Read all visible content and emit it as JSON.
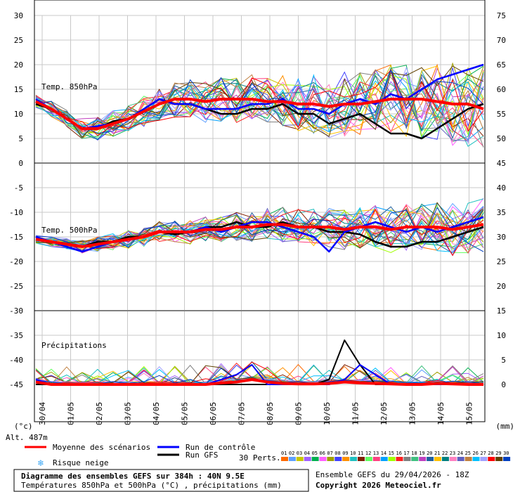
{
  "chart_data": {
    "type": "line",
    "panels": [
      {
        "label": "Temp. 850hPa",
        "unit": "°C"
      },
      {
        "label": "Temp. 500hPa",
        "unit": "°C"
      },
      {
        "label": "Précipitations",
        "unit": "mm"
      }
    ],
    "left_axis": {
      "ticks": [
        "30",
        "25",
        "20",
        "15",
        "10",
        "5",
        "0",
        "-5",
        "-10",
        "-15",
        "-20",
        "-25",
        "-30",
        "-35",
        "-40",
        "-45"
      ],
      "range": [
        -45,
        30
      ],
      "unit_label": "(°c)"
    },
    "right_axis": {
      "ticks": [
        "75",
        "70",
        "65",
        "60",
        "55",
        "50",
        "45",
        "40",
        "35",
        "30",
        "25",
        "20",
        "15",
        "10",
        "5",
        "0"
      ],
      "range": [
        0,
        75
      ],
      "unit_label": "(mm)"
    },
    "x_dates": [
      "30/04",
      "01/05",
      "02/05",
      "03/05",
      "04/05",
      "05/05",
      "06/05",
      "07/05",
      "08/05",
      "09/05",
      "10/05",
      "11/05",
      "12/05",
      "13/05",
      "14/05",
      "15/05"
    ],
    "altitude_label": "Alt. 487m",
    "series_850_mean": [
      12.5,
      11,
      9,
      7,
      7,
      8,
      9,
      10.5,
      12,
      13,
      13,
      12.5,
      13,
      13,
      13,
      12.5,
      12.5,
      12,
      12,
      11.5,
      12,
      12,
      12.5,
      13,
      13,
      13,
      12.5,
      12,
      12,
      11
    ],
    "series_850_control": [
      13,
      11,
      9,
      7,
      7.5,
      8,
      9,
      11,
      13,
      12,
      12,
      11,
      11,
      11,
      12,
      12,
      13,
      11,
      11,
      10,
      12,
      13,
      12,
      14,
      13,
      15,
      17,
      18,
      19,
      20
    ],
    "series_850_gfs": [
      12,
      11,
      9,
      7,
      7,
      8.5,
      9,
      11,
      13,
      12,
      12,
      11,
      10,
      10,
      11,
      11,
      12,
      10,
      10,
      8,
      9,
      10,
      8,
      6,
      6,
      5,
      7,
      9,
      11,
      12
    ],
    "series_500_mean": [
      -15.5,
      -16,
      -16.5,
      -17,
      -16.5,
      -16,
      -15.5,
      -15,
      -14,
      -14,
      -14,
      -13.5,
      -13.5,
      -13,
      -13,
      -12.5,
      -12.5,
      -13,
      -13,
      -13,
      -13.5,
      -13,
      -13,
      -13.5,
      -13,
      -13,
      -13,
      -13.5,
      -13,
      -12.5
    ],
    "series_500_control": [
      -15,
      -16,
      -17,
      -18,
      -17,
      -16,
      -15.5,
      -15,
      -14,
      -14,
      -14,
      -13,
      -14,
      -13,
      -12,
      -12,
      -13,
      -14,
      -15,
      -18,
      -14,
      -13,
      -12,
      -13,
      -14,
      -13,
      -14,
      -13,
      -12,
      -11
    ],
    "series_500_gfs": [
      -15.5,
      -16,
      -16.5,
      -17,
      -16,
      -16,
      -15,
      -15,
      -14,
      -14.5,
      -14,
      -13,
      -13,
      -12,
      -13,
      -13,
      -12,
      -13,
      -13,
      -14,
      -14,
      -14.5,
      -16,
      -17,
      -17,
      -16,
      -16,
      -15,
      -14,
      -13
    ],
    "series_precip_mean": [
      0.5,
      0,
      0,
      0,
      0,
      0,
      0,
      0,
      0,
      0,
      0,
      0,
      0.3,
      0.5,
      1,
      0.5,
      0.2,
      0.1,
      0.1,
      0.2,
      0.5,
      0.3,
      0.2,
      0.1,
      0,
      0,
      0.2,
      0.1,
      0,
      0
    ],
    "series_precip_control": [
      1,
      0,
      0,
      0,
      0,
      0,
      0,
      0,
      0,
      0,
      0,
      0,
      1,
      2,
      4,
      0,
      0,
      0,
      0,
      0,
      1,
      4,
      2,
      0,
      0,
      0,
      0,
      0,
      0,
      0
    ],
    "series_precip_gfs": [
      0,
      0,
      0,
      0,
      0,
      0,
      0,
      0,
      0,
      0,
      0,
      0,
      0,
      0,
      0,
      0,
      0,
      0,
      0,
      1,
      9,
      4,
      0,
      0,
      0,
      0,
      0,
      0,
      0,
      0
    ],
    "legend": {
      "mean": "Moyenne des scénarios",
      "control": "Run de contrôle",
      "gfs": "Run GFS",
      "snow": "Risque neige",
      "perts": "30 Perts.",
      "pert_colors": [
        "#ff6a00",
        "#5ea0ff",
        "#c8c800",
        "#a060ff",
        "#00b050",
        "#ff60ff",
        "#a0a000",
        "#4040ff",
        "#ff9000",
        "#20c0c0",
        "#802000",
        "#60ff60",
        "#ff4080",
        "#00a0ff",
        "#a0ff00",
        "#ff2020",
        "#808080",
        "#40c080",
        "#c040c0",
        "#2060a0",
        "#ffc000",
        "#008080",
        "#ff80c0",
        "#6060c0",
        "#c08040",
        "#00c0ff",
        "#a0a0ff",
        "#ff0000",
        "#604000",
        "#0040c0"
      ],
      "pert_numbers": [
        "01",
        "02",
        "03",
        "04",
        "05",
        "06",
        "07",
        "08",
        "09",
        "10",
        "11",
        "12",
        "13",
        "14",
        "15",
        "16",
        "17",
        "18",
        "19",
        "20",
        "21",
        "22",
        "23",
        "24",
        "25",
        "26",
        "27",
        "28",
        "29",
        "30"
      ]
    },
    "footer": {
      "title": "Diagramme des ensembles GEFS sur 384h : 40N 9.5E",
      "subtitle": "Températures 850hPa et 500hPa (°C) , précipitations (mm)",
      "run": "Ensemble GEFS du 29/04/2026 - 18Z",
      "copyright": "Copyright 2026 Meteociel.fr"
    },
    "colors": {
      "mean": "#ff0000",
      "control": "#0000ff",
      "gfs": "#000000",
      "grid": "#c8c8c8",
      "snow": "#3fa9f5"
    }
  }
}
